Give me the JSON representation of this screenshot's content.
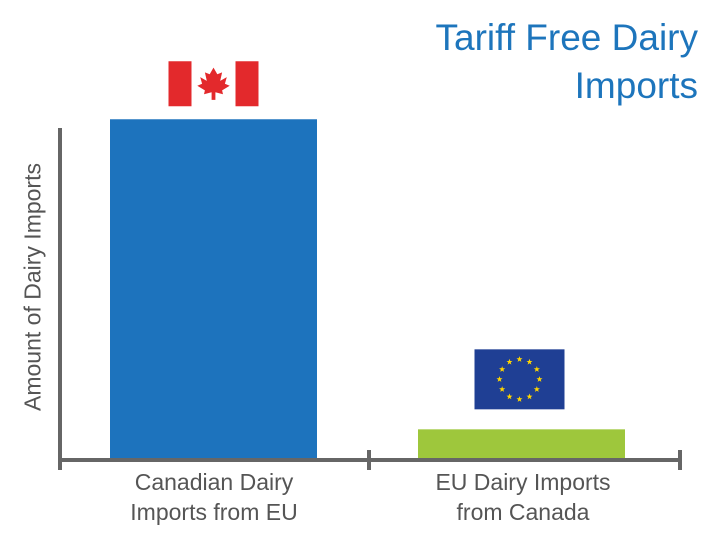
{
  "chart_data": {
    "type": "bar",
    "title_lines": [
      "Tariff Free Dairy",
      "Imports"
    ],
    "ylabel": "Amount of Dairy Imports",
    "xlabel": "",
    "categories": [
      {
        "lines": [
          "Canadian Dairy",
          "Imports from EU"
        ],
        "flag": "canada-flag"
      },
      {
        "lines": [
          "EU Dairy Imports",
          "from Canada"
        ],
        "flag": "eu-flag"
      }
    ],
    "values": [
      100,
      9
    ],
    "ylim": [
      0,
      108
    ],
    "y_ticks_shown": false,
    "grid": false,
    "legend": "none",
    "colors": {
      "title": "#1d75bc",
      "bars": [
        "#1d73bd",
        "#9ec73c"
      ],
      "axis": "#666666",
      "label": "#555555",
      "canada_red": "#e3292c",
      "eu_blue": "#1f3f94",
      "eu_star": "#ffd600"
    }
  }
}
